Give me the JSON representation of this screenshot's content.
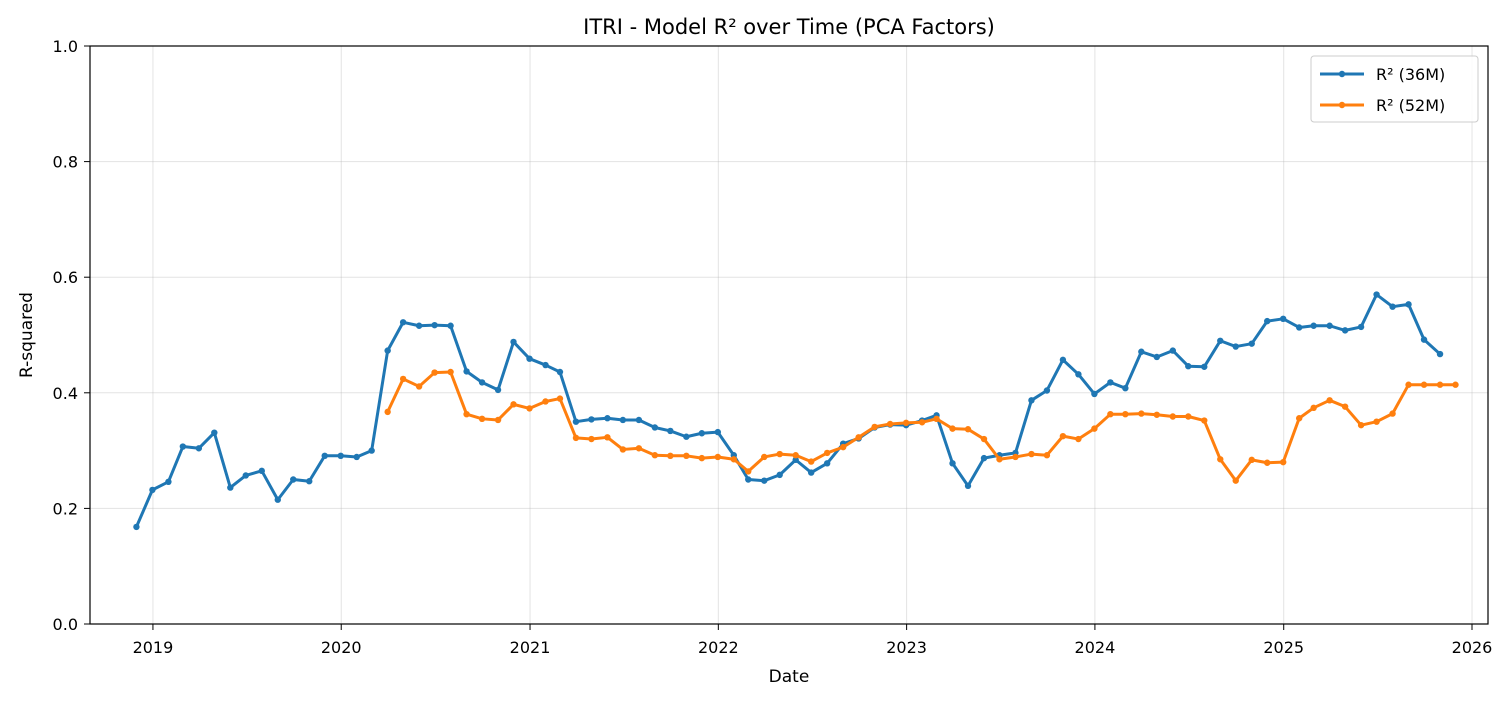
{
  "chart_data": {
    "type": "line",
    "title": "ITRI - Model R² over Time (PCA Factors)",
    "xlabel": "Date",
    "ylabel": "R-squared",
    "xlim": [
      "2018-09-01",
      "2026-02-01"
    ],
    "ylim": [
      0,
      1
    ],
    "x_ticks": [
      "2019",
      "2020",
      "2021",
      "2022",
      "2023",
      "2024",
      "2025",
      "2026"
    ],
    "y_ticks": [
      "0.0",
      "0.2",
      "0.4",
      "0.6",
      "0.8",
      "1.0"
    ],
    "grid": true,
    "legend_position": "top-right",
    "series": [
      {
        "name": "R² (36M)",
        "color": "#1f77b4",
        "points": [
          [
            "2018-11-30",
            0.168
          ],
          [
            "2018-12-31",
            0.232
          ],
          [
            "2019-01-31",
            0.246
          ],
          [
            "2019-02-28",
            0.307
          ],
          [
            "2019-03-31",
            0.304
          ],
          [
            "2019-04-30",
            0.331
          ],
          [
            "2019-05-31",
            0.236
          ],
          [
            "2019-06-30",
            0.257
          ],
          [
            "2019-07-31",
            0.265
          ],
          [
            "2019-08-31",
            0.215
          ],
          [
            "2019-09-30",
            0.25
          ],
          [
            "2019-10-31",
            0.247
          ],
          [
            "2019-11-30",
            0.291
          ],
          [
            "2019-12-31",
            0.291
          ],
          [
            "2020-01-31",
            0.289
          ],
          [
            "2020-02-29",
            0.3
          ],
          [
            "2020-03-31",
            0.473
          ],
          [
            "2020-04-30",
            0.522
          ],
          [
            "2020-05-31",
            0.516
          ],
          [
            "2020-06-30",
            0.517
          ],
          [
            "2020-07-31",
            0.516
          ],
          [
            "2020-08-31",
            0.437
          ],
          [
            "2020-09-30",
            0.418
          ],
          [
            "2020-10-31",
            0.405
          ],
          [
            "2020-11-30",
            0.488
          ],
          [
            "2020-12-31",
            0.459
          ],
          [
            "2021-01-31",
            0.448
          ],
          [
            "2021-02-28",
            0.436
          ],
          [
            "2021-03-31",
            0.35
          ],
          [
            "2021-04-30",
            0.354
          ],
          [
            "2021-05-31",
            0.356
          ],
          [
            "2021-06-30",
            0.353
          ],
          [
            "2021-07-31",
            0.353
          ],
          [
            "2021-08-31",
            0.34
          ],
          [
            "2021-09-30",
            0.334
          ],
          [
            "2021-10-31",
            0.324
          ],
          [
            "2021-11-30",
            0.33
          ],
          [
            "2021-12-31",
            0.332
          ],
          [
            "2022-01-31",
            0.292
          ],
          [
            "2022-02-28",
            0.25
          ],
          [
            "2022-03-31",
            0.248
          ],
          [
            "2022-04-30",
            0.258
          ],
          [
            "2022-05-31",
            0.284
          ],
          [
            "2022-06-30",
            0.262
          ],
          [
            "2022-07-31",
            0.278
          ],
          [
            "2022-08-31",
            0.312
          ],
          [
            "2022-09-30",
            0.321
          ],
          [
            "2022-10-31",
            0.34
          ],
          [
            "2022-11-30",
            0.345
          ],
          [
            "2022-12-31",
            0.344
          ],
          [
            "2023-01-31",
            0.352
          ],
          [
            "2023-02-28",
            0.361
          ],
          [
            "2023-03-31",
            0.278
          ],
          [
            "2023-04-30",
            0.239
          ],
          [
            "2023-05-31",
            0.287
          ],
          [
            "2023-06-30",
            0.292
          ],
          [
            "2023-07-31",
            0.296
          ],
          [
            "2023-08-31",
            0.387
          ],
          [
            "2023-09-30",
            0.404
          ],
          [
            "2023-10-31",
            0.457
          ],
          [
            "2023-11-30",
            0.432
          ],
          [
            "2023-12-31",
            0.398
          ],
          [
            "2024-01-31",
            0.418
          ],
          [
            "2024-02-29",
            0.408
          ],
          [
            "2024-03-31",
            0.471
          ],
          [
            "2024-04-30",
            0.462
          ],
          [
            "2024-05-31",
            0.473
          ],
          [
            "2024-06-30",
            0.446
          ],
          [
            "2024-07-31",
            0.445
          ],
          [
            "2024-08-31",
            0.49
          ],
          [
            "2024-09-30",
            0.48
          ],
          [
            "2024-10-31",
            0.485
          ],
          [
            "2024-11-30",
            0.524
          ],
          [
            "2024-12-31",
            0.528
          ],
          [
            "2025-01-31",
            0.513
          ],
          [
            "2025-02-28",
            0.516
          ],
          [
            "2025-03-31",
            0.516
          ],
          [
            "2025-04-30",
            0.508
          ],
          [
            "2025-05-31",
            0.514
          ],
          [
            "2025-06-30",
            0.57
          ],
          [
            "2025-07-31",
            0.549
          ],
          [
            "2025-08-31",
            0.553
          ],
          [
            "2025-09-30",
            0.492
          ],
          [
            "2025-10-31",
            0.467
          ]
        ]
      },
      {
        "name": "R² (52M)",
        "color": "#ff7f0e",
        "points": [
          [
            "2020-03-31",
            0.367
          ],
          [
            "2020-04-30",
            0.424
          ],
          [
            "2020-05-31",
            0.411
          ],
          [
            "2020-06-30",
            0.435
          ],
          [
            "2020-07-31",
            0.436
          ],
          [
            "2020-08-31",
            0.363
          ],
          [
            "2020-09-30",
            0.355
          ],
          [
            "2020-10-31",
            0.353
          ],
          [
            "2020-11-30",
            0.38
          ],
          [
            "2020-12-31",
            0.373
          ],
          [
            "2021-01-31",
            0.385
          ],
          [
            "2021-02-28",
            0.39
          ],
          [
            "2021-03-31",
            0.322
          ],
          [
            "2021-04-30",
            0.32
          ],
          [
            "2021-05-31",
            0.323
          ],
          [
            "2021-06-30",
            0.302
          ],
          [
            "2021-07-31",
            0.304
          ],
          [
            "2021-08-31",
            0.292
          ],
          [
            "2021-09-30",
            0.291
          ],
          [
            "2021-10-31",
            0.291
          ],
          [
            "2021-11-30",
            0.287
          ],
          [
            "2021-12-31",
            0.289
          ],
          [
            "2022-01-31",
            0.285
          ],
          [
            "2022-02-28",
            0.264
          ],
          [
            "2022-03-31",
            0.289
          ],
          [
            "2022-04-30",
            0.294
          ],
          [
            "2022-05-31",
            0.292
          ],
          [
            "2022-06-30",
            0.281
          ],
          [
            "2022-07-31",
            0.296
          ],
          [
            "2022-08-31",
            0.306
          ],
          [
            "2022-09-30",
            0.323
          ],
          [
            "2022-10-31",
            0.341
          ],
          [
            "2022-11-30",
            0.346
          ],
          [
            "2022-12-31",
            0.348
          ],
          [
            "2023-01-31",
            0.349
          ],
          [
            "2023-02-28",
            0.355
          ],
          [
            "2023-03-31",
            0.338
          ],
          [
            "2023-04-30",
            0.337
          ],
          [
            "2023-05-31",
            0.32
          ],
          [
            "2023-06-30",
            0.285
          ],
          [
            "2023-07-31",
            0.289
          ],
          [
            "2023-08-31",
            0.294
          ],
          [
            "2023-09-30",
            0.292
          ],
          [
            "2023-10-31",
            0.325
          ],
          [
            "2023-11-30",
            0.32
          ],
          [
            "2023-12-31",
            0.338
          ],
          [
            "2024-01-31",
            0.363
          ],
          [
            "2024-02-29",
            0.363
          ],
          [
            "2024-03-31",
            0.364
          ],
          [
            "2024-04-30",
            0.362
          ],
          [
            "2024-05-31",
            0.359
          ],
          [
            "2024-06-30",
            0.359
          ],
          [
            "2024-07-31",
            0.352
          ],
          [
            "2024-08-31",
            0.285
          ],
          [
            "2024-09-30",
            0.248
          ],
          [
            "2024-10-31",
            0.284
          ],
          [
            "2024-11-30",
            0.279
          ],
          [
            "2024-12-31",
            0.28
          ],
          [
            "2025-01-31",
            0.356
          ],
          [
            "2025-02-28",
            0.374
          ],
          [
            "2025-03-31",
            0.387
          ],
          [
            "2025-04-30",
            0.376
          ],
          [
            "2025-05-31",
            0.344
          ],
          [
            "2025-06-30",
            0.35
          ],
          [
            "2025-07-31",
            0.364
          ],
          [
            "2025-08-31",
            0.414
          ],
          [
            "2025-09-30",
            0.414
          ],
          [
            "2025-10-31",
            0.414
          ],
          [
            "2025-11-30",
            0.414
          ]
        ]
      }
    ]
  }
}
